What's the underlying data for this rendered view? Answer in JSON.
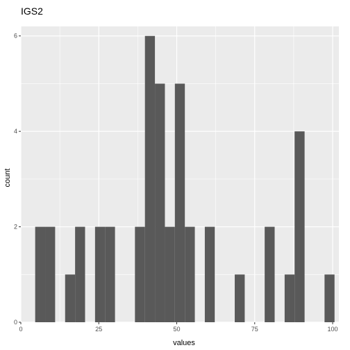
{
  "chart_data": {
    "type": "bar",
    "title": "IGS2",
    "xlabel": "values",
    "ylabel": "count",
    "xlim": [
      0,
      102
    ],
    "ylim": [
      0,
      6.2
    ],
    "x_ticks": [
      0,
      25,
      50,
      75,
      100
    ],
    "y_ticks": [
      0,
      2,
      4,
      6
    ],
    "bin_width": 3.2,
    "grid": true,
    "legend": "none",
    "colors": {
      "bar": "#595959",
      "panel": "#ebebeb",
      "grid": "#ffffff"
    },
    "bins": [
      {
        "x0": 4.6,
        "x1": 7.8,
        "count": 2
      },
      {
        "x0": 7.8,
        "x1": 11.0,
        "count": 2
      },
      {
        "x0": 14.2,
        "x1": 17.4,
        "count": 1
      },
      {
        "x0": 17.4,
        "x1": 20.6,
        "count": 2
      },
      {
        "x0": 23.8,
        "x1": 27.0,
        "count": 2
      },
      {
        "x0": 27.0,
        "x1": 30.2,
        "count": 2
      },
      {
        "x0": 36.6,
        "x1": 39.8,
        "count": 2
      },
      {
        "x0": 39.8,
        "x1": 43.0,
        "count": 6
      },
      {
        "x0": 43.0,
        "x1": 46.2,
        "count": 5
      },
      {
        "x0": 46.2,
        "x1": 49.4,
        "count": 2
      },
      {
        "x0": 49.4,
        "x1": 52.6,
        "count": 5
      },
      {
        "x0": 52.6,
        "x1": 55.8,
        "count": 2
      },
      {
        "x0": 59.0,
        "x1": 62.2,
        "count": 2
      },
      {
        "x0": 68.6,
        "x1": 71.8,
        "count": 1
      },
      {
        "x0": 78.2,
        "x1": 81.4,
        "count": 2
      },
      {
        "x0": 84.6,
        "x1": 87.8,
        "count": 1
      },
      {
        "x0": 87.8,
        "x1": 91.0,
        "count": 4
      },
      {
        "x0": 97.4,
        "x1": 100.6,
        "count": 1
      }
    ]
  }
}
